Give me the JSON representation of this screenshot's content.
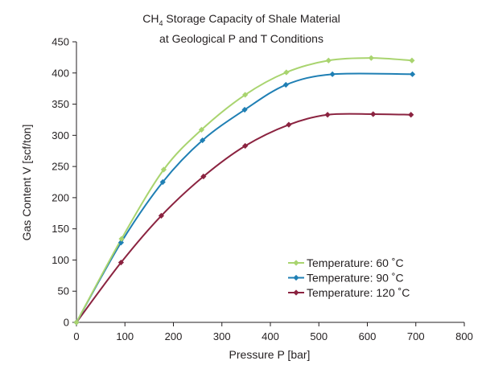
{
  "chart_data": {
    "type": "line",
    "title_line1_prefix": "CH",
    "title_line1_sub": "4",
    "title_line1_suffix": " Storage Capacity of Shale Material",
    "title_line2": "at Geological P and T Conditions",
    "xlabel": "Pressure P [bar]",
    "ylabel": "Gas Content V [scf/ton]",
    "xlim": [
      0,
      800
    ],
    "ylim": [
      0,
      450
    ],
    "x_ticks": [
      0,
      100,
      200,
      300,
      400,
      500,
      600,
      700,
      800
    ],
    "y_ticks": [
      0,
      50,
      100,
      150,
      200,
      250,
      300,
      350,
      400,
      450
    ],
    "grid": false,
    "legend_position": "bottom-right",
    "series": [
      {
        "name": "Temperature: 60 ˚C",
        "color": "#a9d46f",
        "marker": "diamond",
        "x": [
          0,
          93,
          180,
          258,
          348,
          433,
          520,
          608,
          692
        ],
        "y": [
          0,
          134,
          245,
          309,
          365,
          401,
          420,
          424,
          420
        ]
      },
      {
        "name": "Temperature: 90 ˚C",
        "color": "#1f7fb4",
        "marker": "diamond",
        "x": [
          0,
          92,
          178,
          260,
          347,
          432,
          528,
          693
        ],
        "y": [
          0,
          128,
          225,
          292,
          341,
          381,
          398,
          398
        ]
      },
      {
        "name": "Temperature: 120 ˚C",
        "color": "#8b2340",
        "marker": "diamond",
        "x": [
          0,
          92,
          175,
          262,
          348,
          438,
          518,
          612,
          690
        ],
        "y": [
          0,
          96,
          171,
          234,
          283,
          317,
          333,
          334,
          333
        ]
      }
    ]
  }
}
